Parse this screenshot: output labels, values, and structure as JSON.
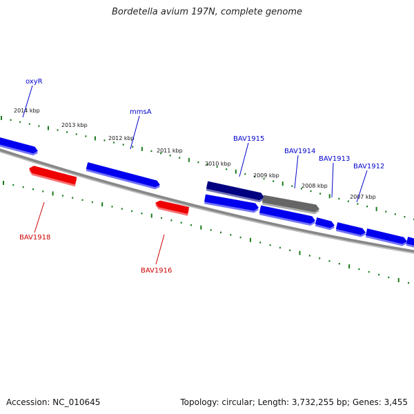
{
  "header": {
    "title": "Bordetella avium 197N, complete genome"
  },
  "footer": {
    "accession": "Accession: NC_010645",
    "summary": "Topology: circular; Length: 3,732,255 bp; Genes: 3,455"
  },
  "colors": {
    "forward_gene": "#0000ee",
    "reverse_gene": "#ee0000",
    "selected_gene": "#000080",
    "other_feature": "#666666",
    "backbone": "#888888",
    "tick": "#1a7a1a",
    "forward_label": "#0000cc",
    "reverse_label": "#cc0000"
  },
  "scale": {
    "ticks": [
      "2014 kbp",
      "2013 kbp",
      "2012 kbp",
      "2011 kbp",
      "2010 kbp",
      "2009 kbp",
      "2008 kbp",
      "2007 kbp"
    ]
  },
  "genes": [
    {
      "name": "oxyR",
      "strand": "forward"
    },
    {
      "name": "mmsA",
      "strand": "forward"
    },
    {
      "name": "BAV1915",
      "strand": "forward",
      "selected": true
    },
    {
      "name": "BAV1914",
      "strand": "forward",
      "feature": "other"
    },
    {
      "name": "BAV1913",
      "strand": "forward"
    },
    {
      "name": "BAV1912",
      "strand": "forward"
    },
    {
      "name": "BAV1918",
      "strand": "reverse"
    },
    {
      "name": "BAV1916",
      "strand": "reverse"
    }
  ]
}
